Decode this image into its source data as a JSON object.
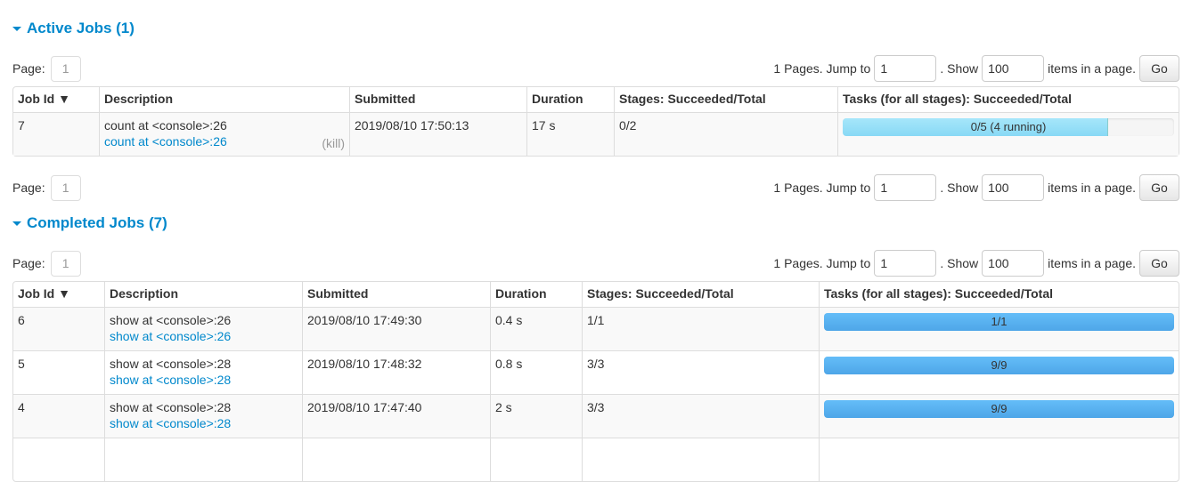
{
  "active": {
    "heading": "Active Jobs (1)",
    "columns": [
      "Job Id ▼",
      "Description",
      "Submitted",
      "Duration",
      "Stages: Succeeded/Total",
      "Tasks (for all stages): Succeeded/Total"
    ],
    "rows": [
      {
        "id": "7",
        "desc": "count at <console>:26",
        "link": "count at <console>:26",
        "kill": "(kill)",
        "submitted": "2019/08/10 17:50:13",
        "duration": "17 s",
        "stages": "0/2",
        "tasks": "0/5 (4 running)",
        "tasks_succeeded": 0,
        "tasks_running": 4,
        "tasks_total": 5
      }
    ]
  },
  "completed": {
    "heading": "Completed Jobs (7)",
    "columns": [
      "Job Id ▼",
      "Description",
      "Submitted",
      "Duration",
      "Stages: Succeeded/Total",
      "Tasks (for all stages): Succeeded/Total"
    ],
    "rows": [
      {
        "id": "6",
        "desc": "show at <console>:26",
        "link": "show at <console>:26",
        "submitted": "2019/08/10 17:49:30",
        "duration": "0.4 s",
        "stages": "1/1",
        "tasks": "1/1",
        "tasks_succeeded": 1,
        "tasks_total": 1
      },
      {
        "id": "5",
        "desc": "show at <console>:28",
        "link": "show at <console>:28",
        "submitted": "2019/08/10 17:48:32",
        "duration": "0.8 s",
        "stages": "3/3",
        "tasks": "9/9",
        "tasks_succeeded": 9,
        "tasks_total": 9
      },
      {
        "id": "4",
        "desc": "show at <console>:28",
        "link": "show at <console>:28",
        "submitted": "2019/08/10 17:47:40",
        "duration": "2 s",
        "stages": "3/3",
        "tasks": "9/9",
        "tasks_succeeded": 9,
        "tasks_total": 9
      }
    ]
  },
  "pagination": {
    "page_label": "Page:",
    "page": "1",
    "pages_text": "1 Pages. Jump to",
    "jump_value": "1",
    "show_text": ". Show",
    "show_value": "100",
    "items_text": "items in a page.",
    "go": "Go"
  },
  "colors": {
    "link": "#0088cc",
    "completed_bar": "#5ab2f0",
    "running_bar": "#99e0f8"
  }
}
